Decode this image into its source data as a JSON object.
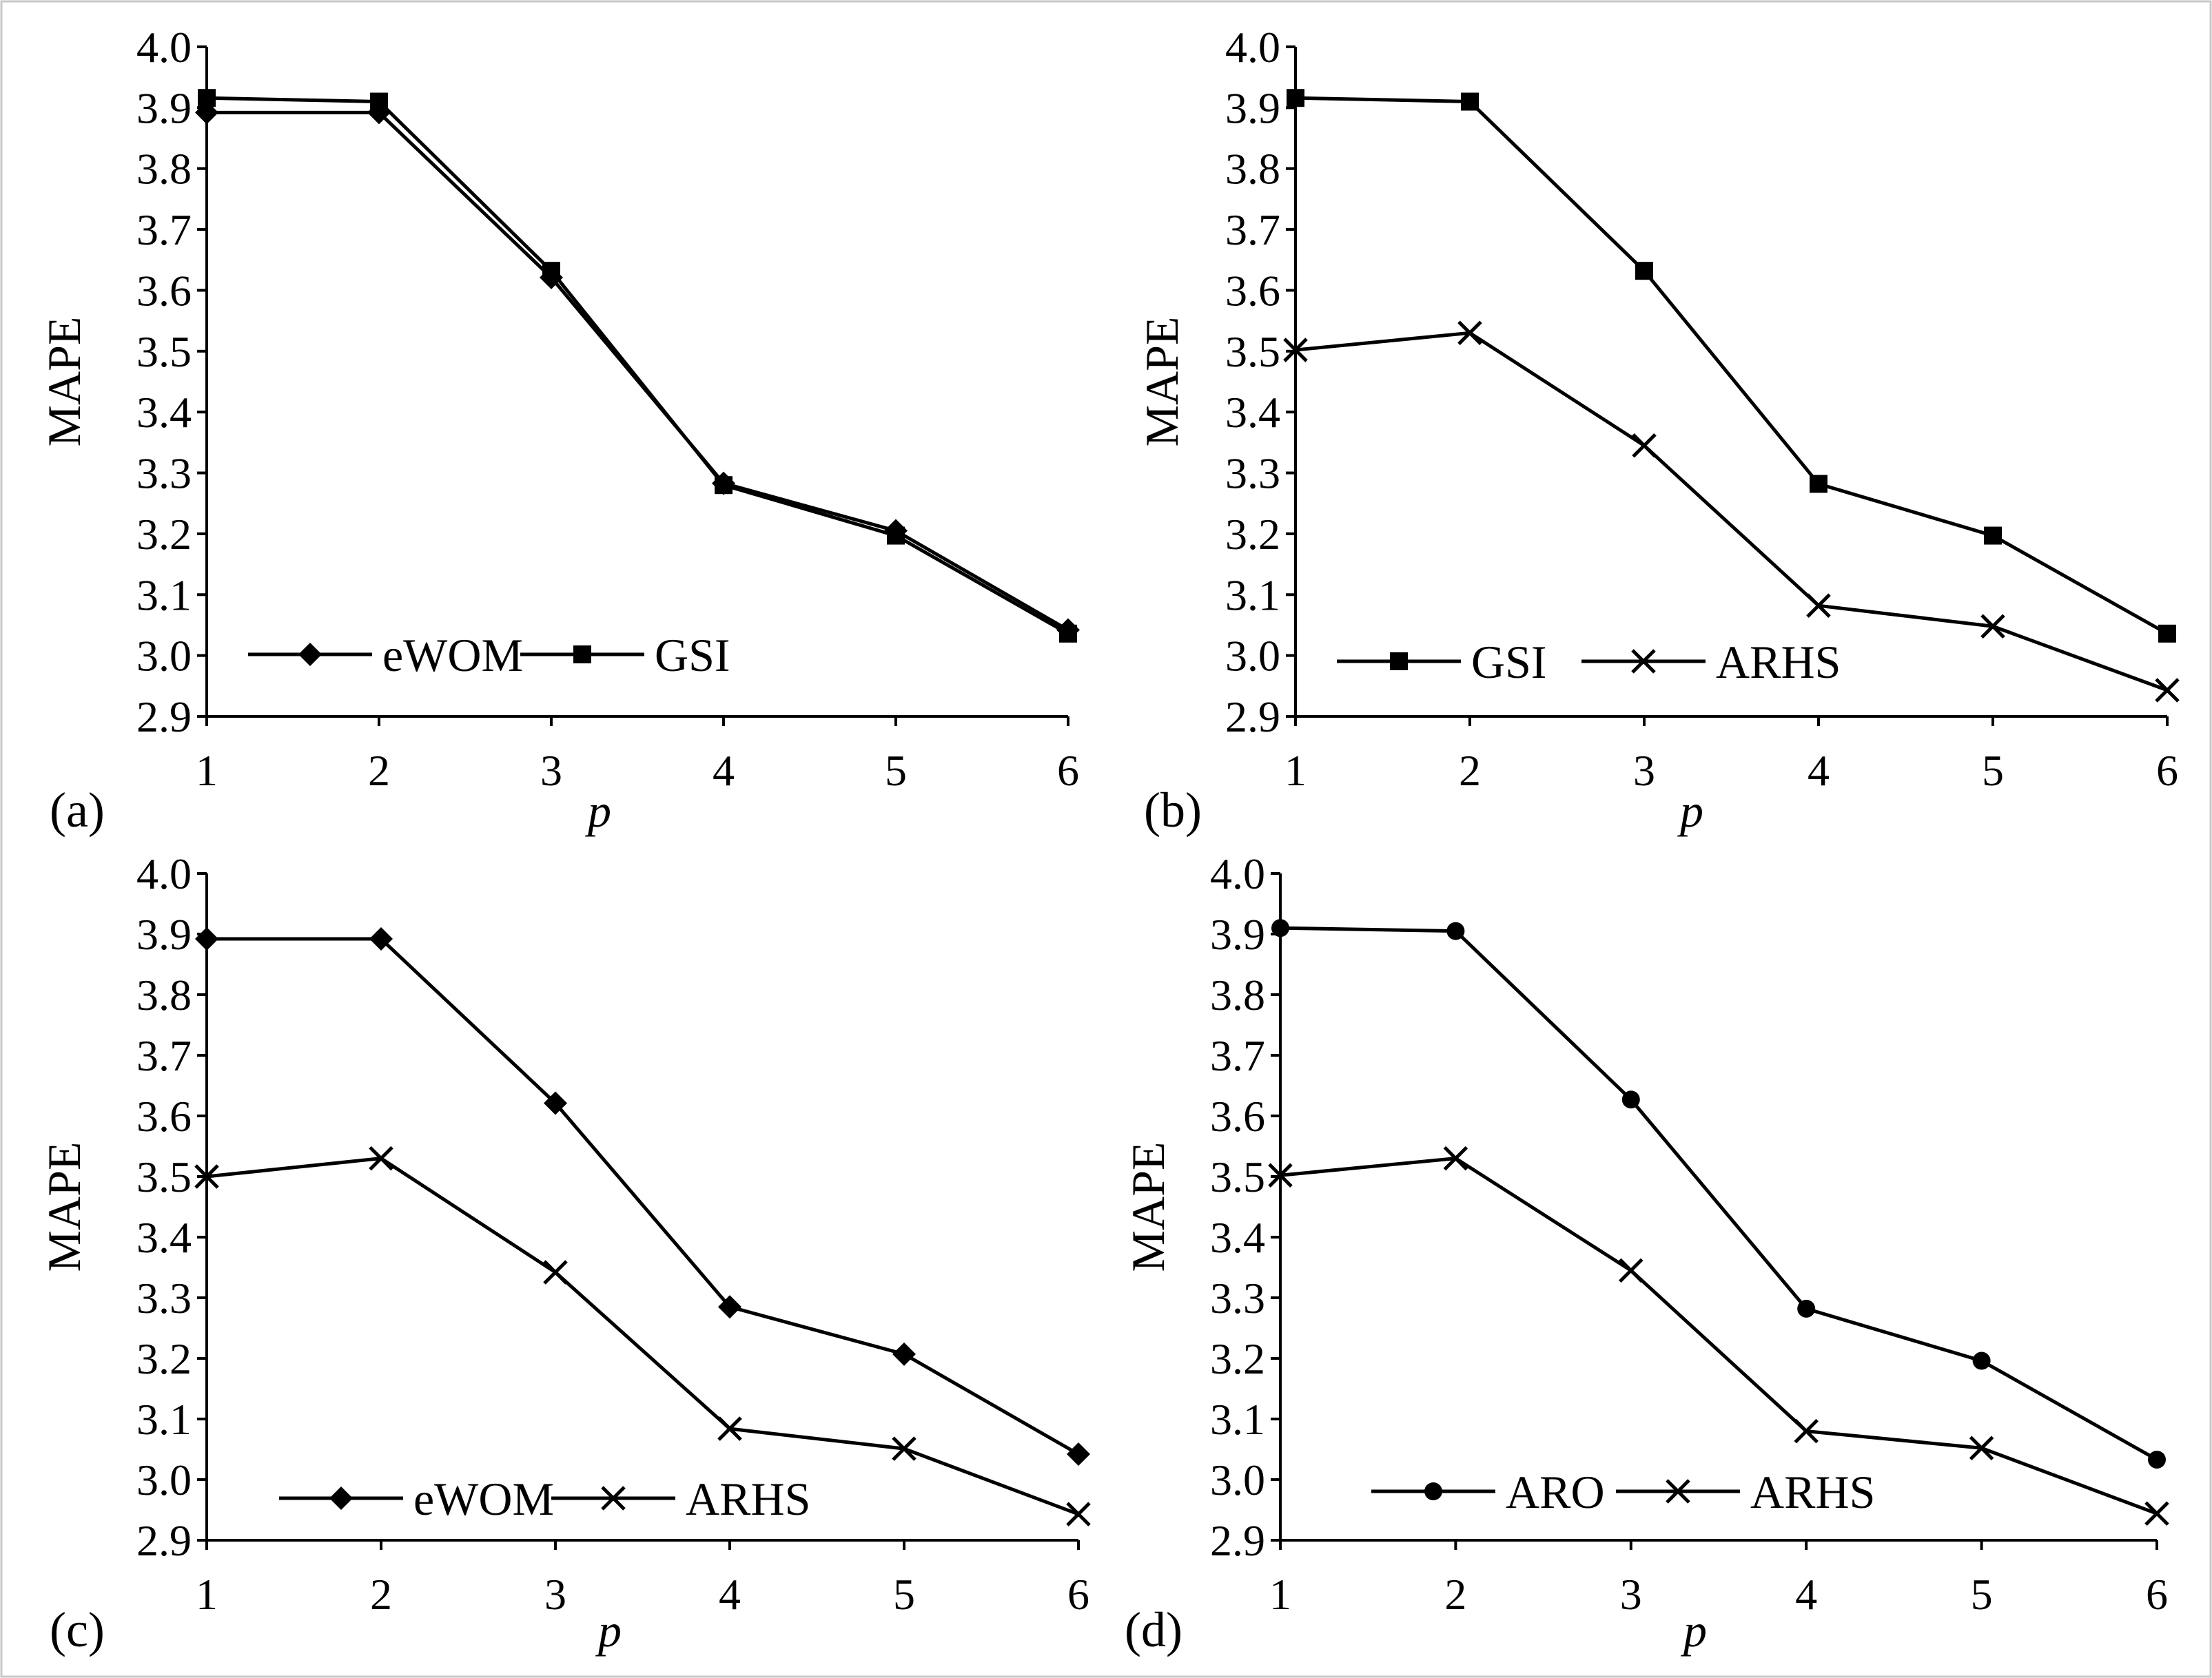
{
  "figure": {
    "panels_label": "Four line charts of MAPE versus p",
    "colors": {
      "line": "#000000",
      "frame": "#c8c8c8",
      "background": "#ffffff"
    }
  },
  "chart_data": [
    {
      "type": "line",
      "panel": "(a)",
      "title": "",
      "xlabel": "p",
      "ylabel": "MAPE",
      "x": [
        1,
        2,
        3,
        4,
        5,
        6
      ],
      "ylim": [
        2.9,
        4.0
      ],
      "yticks": [
        "2.9",
        "3.0",
        "3.1",
        "3.2",
        "3.3",
        "3.4",
        "3.5",
        "3.6",
        "3.7",
        "3.8",
        "3.9",
        "4.0"
      ],
      "xticks": [
        "1",
        "2",
        "3",
        "4",
        "5",
        "6"
      ],
      "legend_position": "bottom-left",
      "series": [
        {
          "name": "eWOM",
          "marker": "diamond",
          "values": [
            3.892,
            3.892,
            3.621,
            3.283,
            3.205,
            3.042
          ]
        },
        {
          "name": "GSI",
          "marker": "square",
          "values": [
            3.916,
            3.91,
            3.632,
            3.28,
            3.197,
            3.036
          ]
        }
      ]
    },
    {
      "type": "line",
      "panel": "(b)",
      "title": "",
      "xlabel": "p",
      "ylabel": "MAPE",
      "x": [
        1,
        2,
        3,
        4,
        5,
        6
      ],
      "ylim": [
        2.9,
        4.0
      ],
      "yticks": [
        "2.9",
        "3.0",
        "3.1",
        "3.2",
        "3.3",
        "3.4",
        "3.5",
        "3.6",
        "3.7",
        "3.8",
        "3.9",
        "4.0"
      ],
      "xticks": [
        "1",
        "2",
        "3",
        "4",
        "5",
        "6"
      ],
      "legend_position": "bottom-left",
      "series": [
        {
          "name": "GSI",
          "marker": "square",
          "values": [
            3.916,
            3.91,
            3.632,
            3.282,
            3.197,
            3.036
          ]
        },
        {
          "name": "ARHS",
          "marker": "cross",
          "values": [
            3.502,
            3.53,
            3.345,
            3.082,
            3.048,
            2.943
          ]
        }
      ]
    },
    {
      "type": "line",
      "panel": "(c)",
      "title": "",
      "xlabel": "p",
      "ylabel": "MAPE",
      "x": [
        1,
        2,
        3,
        4,
        5,
        6
      ],
      "ylim": [
        2.9,
        4.0
      ],
      "yticks": [
        "2.9",
        "3.0",
        "3.1",
        "3.2",
        "3.3",
        "3.4",
        "3.5",
        "3.6",
        "3.7",
        "3.8",
        "3.9",
        "4.0"
      ],
      "xticks": [
        "1",
        "2",
        "3",
        "4",
        "5",
        "6"
      ],
      "legend_position": "bottom-left",
      "series": [
        {
          "name": "eWOM",
          "marker": "diamond",
          "values": [
            3.892,
            3.892,
            3.621,
            3.285,
            3.207,
            3.042
          ]
        },
        {
          "name": "ARHS",
          "marker": "cross",
          "values": [
            3.5,
            3.53,
            3.342,
            3.084,
            3.051,
            2.943
          ]
        }
      ]
    },
    {
      "type": "line",
      "panel": "(d)",
      "title": "",
      "xlabel": "p",
      "ylabel": "MAPE",
      "x": [
        1,
        2,
        3,
        4,
        5,
        6
      ],
      "ylim": [
        2.9,
        4.0
      ],
      "yticks": [
        "2.9",
        "3.0",
        "3.1",
        "3.2",
        "3.3",
        "3.4",
        "3.5",
        "3.6",
        "3.7",
        "3.8",
        "3.9",
        "4.0"
      ],
      "xticks": [
        "1",
        "2",
        "3",
        "4",
        "5",
        "6"
      ],
      "legend_position": "bottom-left",
      "series": [
        {
          "name": "ARO",
          "marker": "circle",
          "values": [
            3.91,
            3.905,
            3.627,
            3.282,
            3.196,
            3.033
          ]
        },
        {
          "name": "ARHS",
          "marker": "cross",
          "values": [
            3.502,
            3.53,
            3.345,
            3.08,
            3.052,
            2.944
          ]
        }
      ]
    }
  ]
}
